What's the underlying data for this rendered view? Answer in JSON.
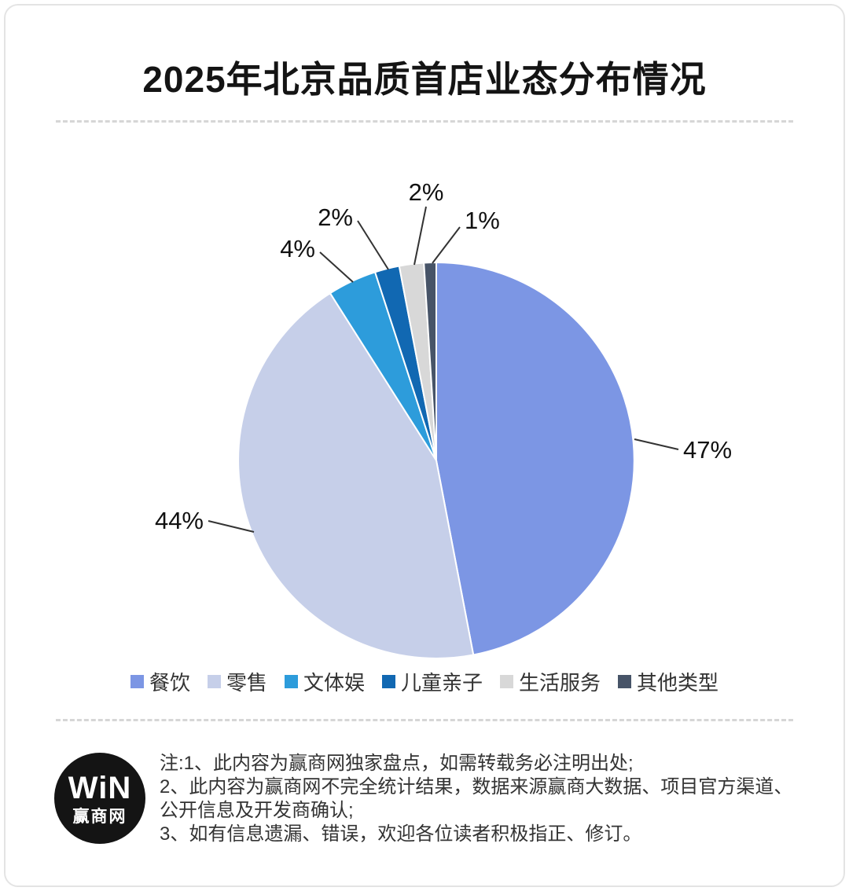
{
  "header": {
    "title": "2025年北京品质首店业态分布情况"
  },
  "chart_data": {
    "type": "pie",
    "title": "2025年北京品质首店业态分布情况",
    "direction": "clockwise",
    "start_angle_deg": 0,
    "legend_position": "bottom",
    "slices": [
      {
        "label": "餐饮",
        "value": 47,
        "display": "47%",
        "color": "#7C96E4"
      },
      {
        "label": "零售",
        "value": 44,
        "display": "44%",
        "color": "#C6CFE9"
      },
      {
        "label": "文体娱",
        "value": 4,
        "display": "4%",
        "color": "#2D9CDB"
      },
      {
        "label": "儿童亲子",
        "value": 2,
        "display": "2%",
        "color": "#1168B2"
      },
      {
        "label": "生活服务",
        "value": 2,
        "display": "2%",
        "color": "#D8D8D8"
      },
      {
        "label": "其他类型",
        "value": 1,
        "display": "1%",
        "color": "#475468"
      }
    ]
  },
  "footer": {
    "logo": {
      "brand": "WiN",
      "brand_cn": "赢商网"
    },
    "notes": [
      "注:1、此内容为赢商网独家盘点，如需转载务必注明出处;",
      "2、此内容为赢商网不完全统计结果，数据来源赢商大数据、项目官方渠道、",
      "公开信息及开发商确认;",
      "3、如有信息遗漏、错误，欢迎各位读者积极指正、修订。"
    ]
  }
}
